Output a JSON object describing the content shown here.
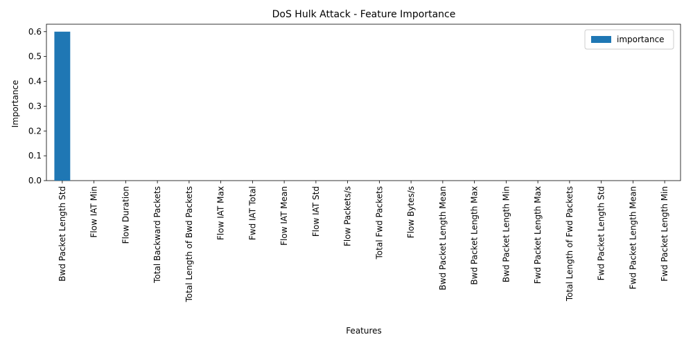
{
  "chart_data": {
    "type": "bar",
    "title": "DoS Hulk Attack - Feature Importance",
    "xlabel": "Features",
    "ylabel": "Importance",
    "ylim": [
      0,
      0.63
    ],
    "yticks": [
      "0.0",
      "0.1",
      "0.2",
      "0.3",
      "0.4",
      "0.5",
      "0.6"
    ],
    "grid": false,
    "legend_position": "top-right",
    "categories": [
      "Bwd Packet Length Std",
      "Flow IAT Min",
      "Flow Duration",
      "Total Backward Packets",
      "Total Length of Bwd Packets",
      "Flow IAT Max",
      "Fwd IAT Total",
      "Flow IAT Mean",
      "Flow IAT Std",
      "Flow Packets/s",
      "Total Fwd Packets",
      "Flow Bytes/s",
      "Bwd Packet Length Mean",
      "Bwd Packet Length Max",
      "Bwd Packet Length Min",
      "Fwd Packet Length Max",
      "Total Length of Fwd Packets",
      "Fwd Packet Length Std",
      "Fwd Packet Length Mean",
      "Fwd Packet Length Min"
    ],
    "series": [
      {
        "name": "importance",
        "color": "#1f77b4",
        "values": [
          0.6,
          0,
          0,
          0,
          0,
          0,
          0,
          0,
          0,
          0,
          0,
          0,
          0,
          0,
          0,
          0,
          0,
          0,
          0,
          0
        ]
      }
    ]
  }
}
